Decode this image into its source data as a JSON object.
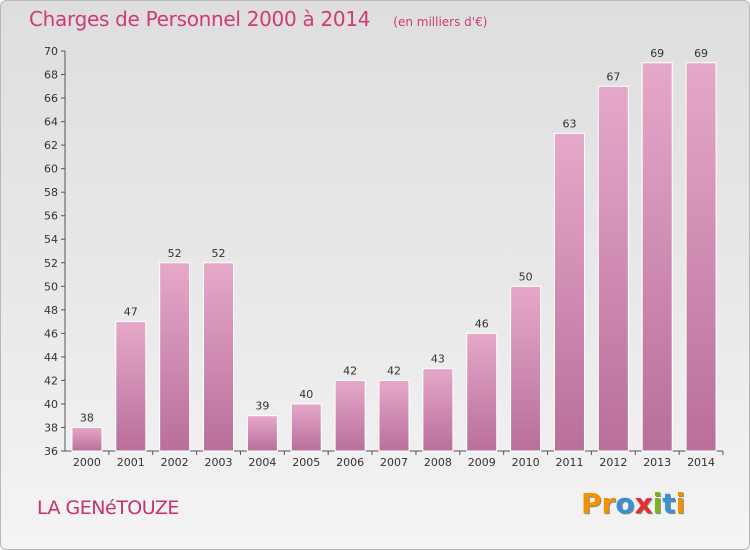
{
  "header": {
    "title": "Charges de Personnel 2000 à 2014",
    "subtitle": "(en milliers d'€)"
  },
  "footer": {
    "town": "LA GENéTOUZE",
    "logo": {
      "letters": [
        "P",
        "r",
        "o",
        "x",
        "i",
        "t",
        "i"
      ],
      "colors": [
        "#f39200",
        "#f39200",
        "#3a8fd6",
        "#e2302d",
        "#7ab51d",
        "#3a8fd6",
        "#f39200"
      ]
    }
  },
  "chart_data": {
    "type": "bar",
    "title": "Charges de Personnel 2000 à 2014",
    "subtitle": "(en milliers d'€)",
    "categories": [
      "2000",
      "2001",
      "2002",
      "2003",
      "2004",
      "2005",
      "2006",
      "2007",
      "2008",
      "2009",
      "2010",
      "2011",
      "2012",
      "2013",
      "2014"
    ],
    "values": [
      38,
      47,
      52,
      52,
      39,
      40,
      42,
      42,
      43,
      46,
      50,
      63,
      67,
      69,
      69
    ],
    "ylim": [
      36,
      70
    ],
    "yticks": [
      36,
      38,
      40,
      42,
      44,
      46,
      48,
      50,
      52,
      54,
      56,
      58,
      60,
      62,
      64,
      66,
      68,
      70
    ],
    "grid": false,
    "bar_color": "#d98ab3",
    "bar_color_top": "#e6a8c9",
    "bar_color_bottom": "#b86f9a"
  }
}
